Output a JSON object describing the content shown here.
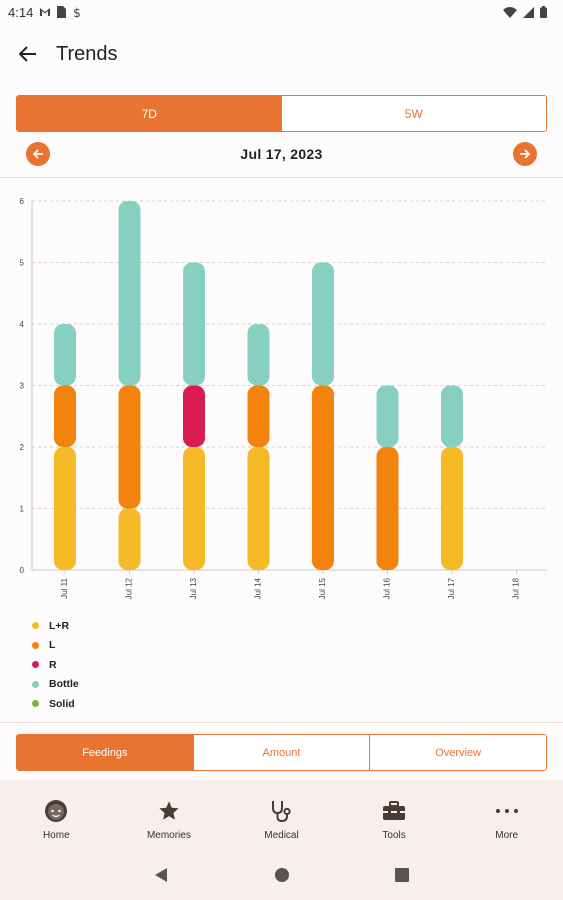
{
  "status_bar": {
    "time": "4:14",
    "icons": [
      "gmail-icon",
      "sim-icon",
      "data-saver-icon",
      "wifi-icon",
      "signal-icon",
      "battery-icon"
    ]
  },
  "app_bar": {
    "title": "Trends",
    "back_icon": "arrow-back-icon"
  },
  "range_toggle": {
    "options": [
      {
        "label": "7D",
        "selected": true
      },
      {
        "label": "5W",
        "selected": false
      }
    ]
  },
  "date_nav": {
    "date": "Jul 17, 2023",
    "prev_icon": "chevron-left-icon",
    "next_icon": "chevron-right-icon"
  },
  "chart_data": {
    "type": "bar",
    "stacked": true,
    "categories": [
      "Jul 11",
      "Jul 12",
      "Jul 13",
      "Jul 14",
      "Jul 15",
      "Jul 16",
      "Jul 17",
      "Jul 18"
    ],
    "series": [
      {
        "name": "L+R",
        "color": "#f6b928",
        "values": [
          2,
          1,
          2,
          2,
          0,
          0,
          2,
          0
        ]
      },
      {
        "name": "L",
        "color": "#f2840e",
        "values": [
          1,
          2,
          0,
          1,
          3,
          2,
          0,
          0
        ]
      },
      {
        "name": "R",
        "color": "#d81b50",
        "values": [
          0,
          0,
          1,
          0,
          0,
          0,
          0,
          0
        ]
      },
      {
        "name": "Bottle",
        "color": "#87cfc0",
        "values": [
          1,
          3,
          2,
          1,
          2,
          1,
          1,
          0
        ]
      },
      {
        "name": "Solid",
        "color": "#7cb342",
        "values": [
          0,
          0,
          0,
          0,
          0,
          0,
          0,
          0
        ]
      }
    ],
    "y_ticks": [
      "0",
      "1",
      "2",
      "3",
      "4",
      "5",
      "6"
    ],
    "ylim": [
      0,
      6
    ],
    "grid": true,
    "legend_position": "bottom-left"
  },
  "view_toggle": {
    "options": [
      {
        "label": "Feedings",
        "selected": true
      },
      {
        "label": "Amount",
        "selected": false
      },
      {
        "label": "Overview",
        "selected": false
      }
    ]
  },
  "bottom_nav": {
    "items": [
      {
        "label": "Home",
        "icon": "baby-face-icon"
      },
      {
        "label": "Memories",
        "icon": "star-icon"
      },
      {
        "label": "Medical",
        "icon": "stethoscope-icon"
      },
      {
        "label": "Tools",
        "icon": "toolbox-icon"
      },
      {
        "label": "More",
        "icon": "more-horizontal-icon"
      }
    ]
  },
  "system_nav": {
    "icons": [
      "back-triangle-icon",
      "home-circle-icon",
      "recents-square-icon"
    ]
  },
  "colors": {
    "accent": "#e97331",
    "nav_background": "#f6efeb"
  }
}
